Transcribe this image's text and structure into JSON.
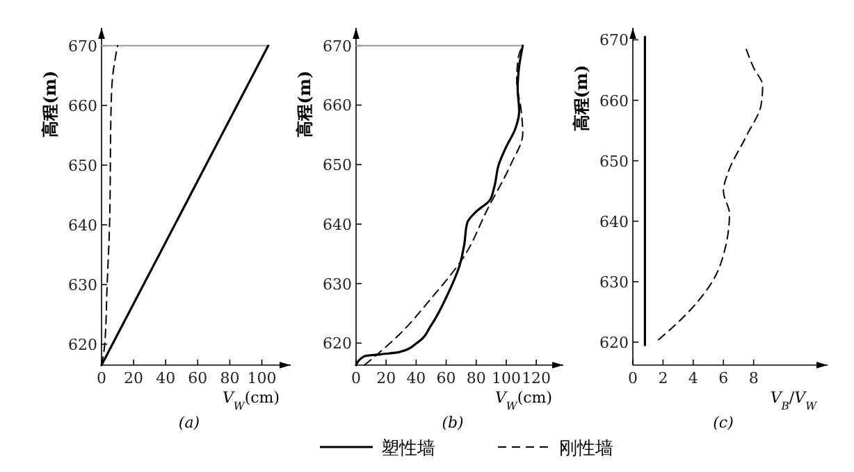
{
  "chart_data": [
    {
      "type": "line",
      "ylabel": "高程(m)",
      "xlabel": "V$_{W}$(cm)",
      "annotations": [
        "(a)"
      ],
      "xlim": [
        0,
        118
      ],
      "ylim": [
        616.5,
        673
      ],
      "xticks": [
        0,
        20,
        40,
        60,
        80,
        100
      ],
      "yticks": [
        620,
        630,
        640,
        650,
        660,
        670
      ],
      "series": [
        {
          "color": "#999999",
          "x": [
            0,
            104
          ],
          "values": [
            670,
            670
          ]
        },
        {
          "color": "#000000",
          "line_style": "solid",
          "x": [
            0,
            104
          ],
          "values": [
            616.5,
            670
          ]
        },
        {
          "color": "#000000",
          "line_style": "dashed",
          "x": [
            0,
            2,
            3.5,
            5,
            6,
            7,
            10
          ],
          "values": [
            616.5,
            620,
            630,
            640,
            660,
            665,
            670
          ]
        }
      ]
    },
    {
      "type": "line",
      "ylabel": "高程(m)",
      "xlabel": "V$_{W}$(cm)",
      "annotations": [
        "(b)"
      ],
      "xlim": [
        0,
        138
      ],
      "ylim": [
        616.3,
        673
      ],
      "xticks": [
        0,
        20,
        40,
        60,
        80,
        100,
        120
      ],
      "yticks": [
        620,
        630,
        640,
        650,
        660,
        670
      ],
      "legend": "bottom",
      "series": [
        {
          "color": "#999999",
          "x": [
            0,
            111
          ],
          "values": [
            670,
            670
          ]
        },
        {
          "name": "塑性墙",
          "color": "#000000",
          "line_style": "solid",
          "x": [
            0,
            5.6,
            16,
            29,
            41,
            50,
            61,
            69,
            72,
            74,
            80,
            89,
            92,
            95,
            100,
            106,
            108.6,
            107.6,
            108.6,
            111
          ],
          "values": [
            616.3,
            617.8,
            618.1,
            618.5,
            620.1,
            623,
            628.2,
            633.1,
            636.5,
            640.2,
            642.1,
            644,
            646.2,
            650,
            653,
            656,
            659,
            662.7,
            666.5,
            670
          ]
        },
        {
          "name": "刚性墙",
          "color": "#000000",
          "line_style": "dashed",
          "x": [
            5.6,
            29,
            50,
            72,
            87.5,
            103,
            111,
            110,
            107,
            108,
            111
          ],
          "values": [
            616.3,
            621.5,
            627.5,
            634.6,
            642.5,
            650,
            655.2,
            659,
            664.2,
            668,
            670
          ]
        }
      ]
    },
    {
      "type": "line",
      "ylabel": "高程(m)",
      "xlabel": "V$_{B}$/V$_{W}$",
      "annotations": [
        "(c)"
      ],
      "xlim": [
        0,
        12.9
      ],
      "ylim": [
        616.2,
        672
      ],
      "xticks": [
        0,
        2,
        4,
        6,
        8
      ],
      "yticks": [
        620,
        630,
        640,
        650,
        660,
        670
      ],
      "series": [
        {
          "color": "#000000",
          "line_style": "solid",
          "x": [
            0.8,
            0.8
          ],
          "values": [
            619.5,
            670.5
          ]
        },
        {
          "color": "#000000",
          "line_style": "dashed",
          "x": [
            1.7,
            3.8,
            5.4,
            6.15,
            6.4,
            6.0,
            6.3,
            7.5,
            8.5,
            8.6,
            8.0,
            7.4
          ],
          "values": [
            620.4,
            625.3,
            630.6,
            635.9,
            641.2,
            645,
            648,
            654,
            659.3,
            662.4,
            665.4,
            669.2
          ]
        }
      ]
    }
  ]
}
